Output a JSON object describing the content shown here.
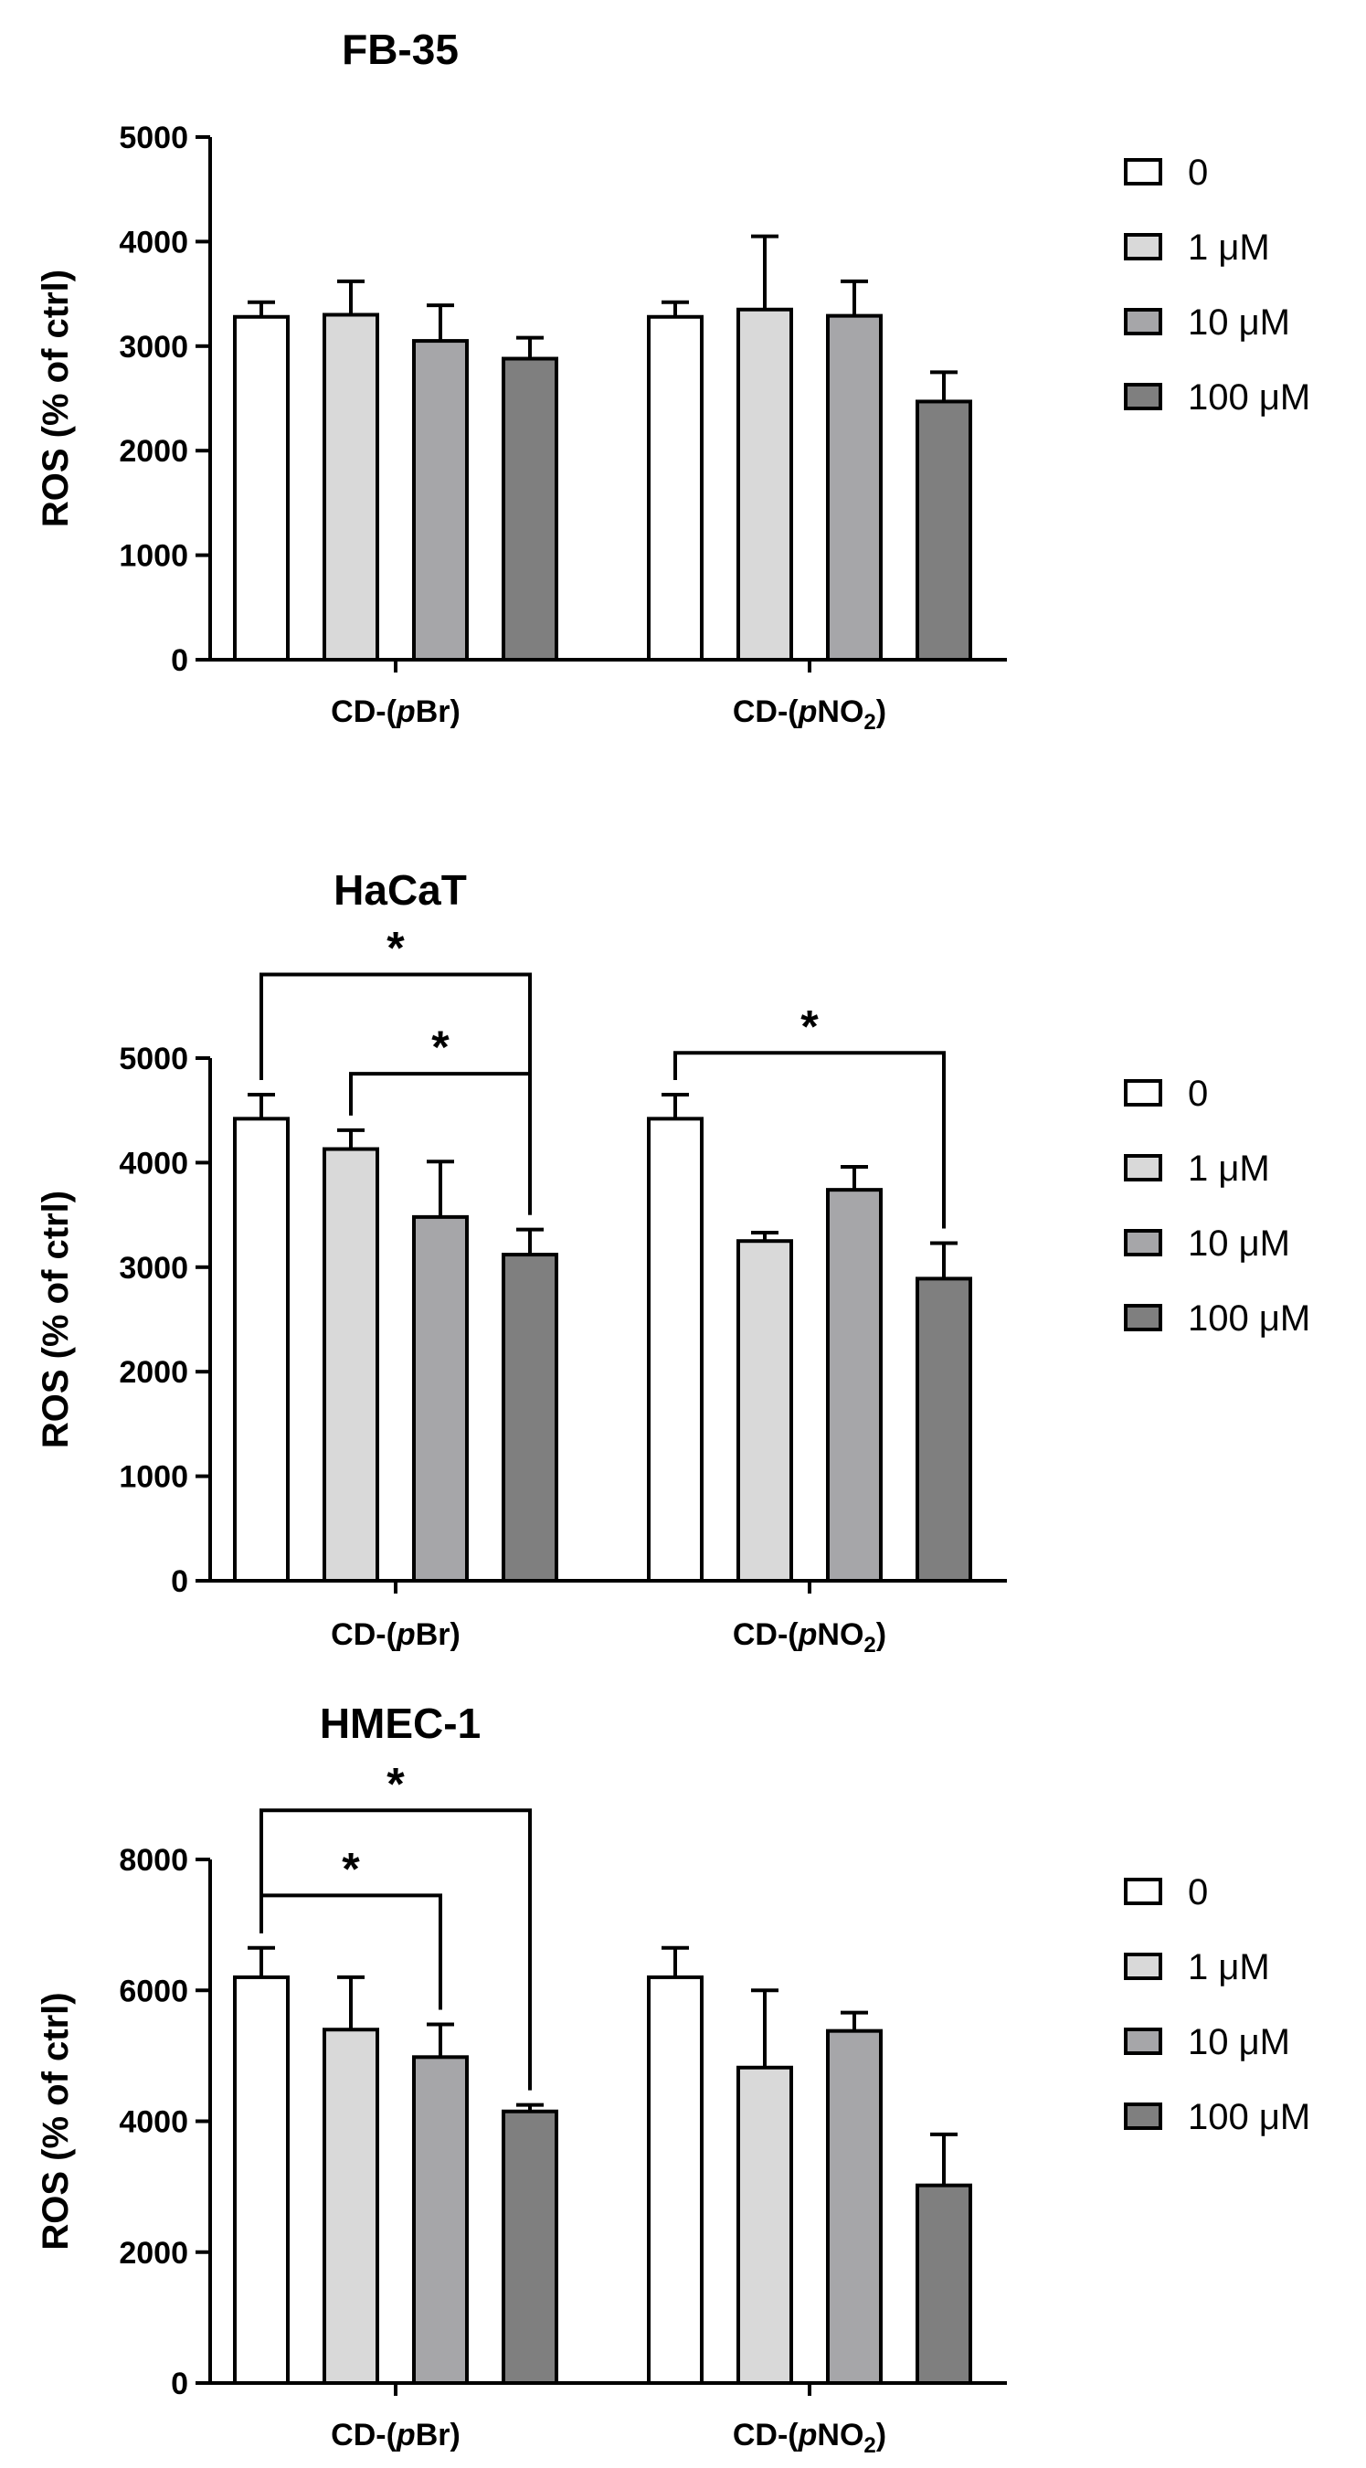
{
  "chart_data": [
    {
      "type": "bar",
      "title": "FB-35",
      "ylabel": "ROS (% of ctrl)",
      "ylim": [
        0,
        5000
      ],
      "yticks": [
        0,
        1000,
        2000,
        3000,
        4000,
        5000
      ],
      "categories": [
        {
          "prefix": "CD-(",
          "italic": "p",
          "main": "Br",
          "sub": "",
          "suffix": ")"
        },
        {
          "prefix": "CD-(",
          "italic": "p",
          "main": "NO",
          "sub": "2",
          "suffix": ")"
        }
      ],
      "series": [
        {
          "name": "0",
          "values": [
            3280,
            3280
          ],
          "errors": [
            140,
            140
          ]
        },
        {
          "name": "1 μM",
          "values": [
            3300,
            3350
          ],
          "errors": [
            320,
            700
          ]
        },
        {
          "name": "10 μM",
          "values": [
            3050,
            3290
          ],
          "errors": [
            340,
            330
          ]
        },
        {
          "name": "100 μM",
          "values": [
            2880,
            2470
          ],
          "errors": [
            200,
            280
          ]
        }
      ],
      "significance": []
    },
    {
      "type": "bar",
      "title": "HaCaT",
      "ylabel": "ROS (% of ctrl)",
      "ylim": [
        0,
        5000
      ],
      "yticks": [
        0,
        1000,
        2000,
        3000,
        4000,
        5000
      ],
      "categories": [
        {
          "prefix": "CD-(",
          "italic": "p",
          "main": "Br",
          "sub": "",
          "suffix": ")"
        },
        {
          "prefix": "CD-(",
          "italic": "p",
          "main": "NO",
          "sub": "2",
          "suffix": ")"
        }
      ],
      "series": [
        {
          "name": "0",
          "values": [
            4420,
            4420
          ],
          "errors": [
            230,
            230
          ]
        },
        {
          "name": "1 μM",
          "values": [
            4130,
            3250
          ],
          "errors": [
            180,
            80
          ]
        },
        {
          "name": "10 μM",
          "values": [
            3480,
            3740
          ],
          "errors": [
            530,
            220
          ]
        },
        {
          "name": "100 μM",
          "values": [
            3120,
            2890
          ],
          "errors": [
            240,
            340
          ]
        }
      ],
      "significance": [
        {
          "group": 0,
          "from": 0,
          "to": 3,
          "level": 5800,
          "label": "*"
        },
        {
          "group": 0,
          "from": 1,
          "to": 3,
          "level": 4850,
          "label": "*"
        },
        {
          "group": 1,
          "from": 0,
          "to": 3,
          "level": 5050,
          "label": "*"
        }
      ]
    },
    {
      "type": "bar",
      "title": "HMEC-1",
      "ylabel": "ROS (% of ctrl)",
      "ylim": [
        0,
        8000
      ],
      "yticks": [
        0,
        2000,
        4000,
        6000,
        8000
      ],
      "categories": [
        {
          "prefix": "CD-(",
          "italic": "p",
          "main": "Br",
          "sub": "",
          "suffix": ")"
        },
        {
          "prefix": "CD-(",
          "italic": "p",
          "main": "NO",
          "sub": "2",
          "suffix": ")"
        }
      ],
      "series": [
        {
          "name": "0",
          "values": [
            6200,
            6200
          ],
          "errors": [
            450,
            450
          ]
        },
        {
          "name": "1 μM",
          "values": [
            5400,
            4820
          ],
          "errors": [
            800,
            1180
          ]
        },
        {
          "name": "10 μM",
          "values": [
            4980,
            5380
          ],
          "errors": [
            500,
            280
          ]
        },
        {
          "name": "100 μM",
          "values": [
            4150,
            3020
          ],
          "errors": [
            100,
            780
          ]
        }
      ],
      "significance": [
        {
          "group": 0,
          "from": 0,
          "to": 3,
          "level": 8750,
          "label": "*"
        },
        {
          "group": 0,
          "from": 0,
          "to": 2,
          "level": 7450,
          "label": "*"
        }
      ]
    }
  ],
  "colors": {
    "series": [
      "#ffffff",
      "#d9d9d9",
      "#a6a6a9",
      "#7f7f7f"
    ],
    "stroke": "#000000"
  }
}
